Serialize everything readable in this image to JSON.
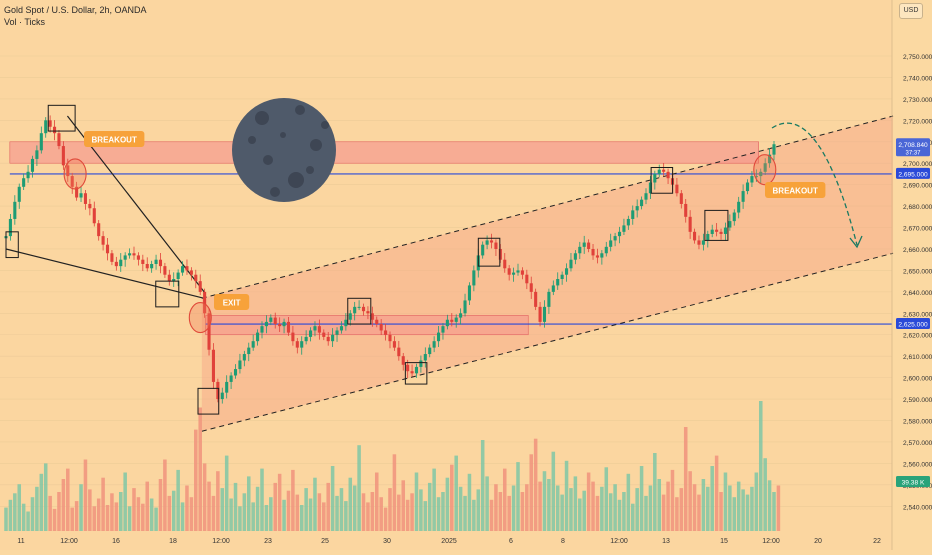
{
  "header": {
    "symbol_title": "Gold Spot / U.S. Dollar, 2h, OANDA",
    "volume_title": "Vol · Ticks",
    "currency": "USD"
  },
  "chart_data": {
    "type": "candlestick",
    "title": "Gold Spot / U.S. Dollar, 2h, OANDA",
    "price_axis": {
      "range": [
        2535,
        2757
      ],
      "ticks": [
        2540,
        2550,
        2560,
        2570,
        2580,
        2590,
        2600,
        2610,
        2620,
        2630,
        2640,
        2650,
        2660,
        2670,
        2680,
        2690,
        2700,
        2710,
        2720,
        2730,
        2740,
        2750
      ],
      "tick_labels": [
        "2,540.000",
        "2,550.000",
        "2,560.000",
        "2,570.000",
        "2,580.000",
        "2,590.000",
        "2,600.000",
        "2,610.000",
        "2,620.000",
        "2,630.000",
        "2,640.000",
        "2,650.000",
        "2,660.000",
        "2,670.000",
        "2,680.000",
        "2,690.000",
        "2,700.000",
        "2,710.000",
        "2,720.000",
        "2,730.000",
        "2,740.000",
        "2,750.000"
      ]
    },
    "time_axis": {
      "labels": [
        "11",
        "12:00",
        "16",
        "18",
        "12:00",
        "23",
        "25",
        "30",
        "2025",
        "6",
        "8",
        "12:00",
        "13",
        "15",
        "12:00",
        "20",
        "22"
      ]
    },
    "price_labels": [
      {
        "value": 2708.84,
        "label": "2,708.840",
        "sub": "37:37",
        "color": "#4a66d6"
      },
      {
        "value": 2695.0,
        "label": "2,695.000",
        "color": "#2a4ad8"
      },
      {
        "value": 2625.0,
        "label": "2,625.000",
        "color": "#2a4ad8"
      }
    ],
    "volume_label": "39.38 K",
    "horizontal_levels": [
      2695,
      2625
    ],
    "zones": [
      {
        "from": 2700,
        "to": 2710
      },
      {
        "from": 2620,
        "to": 2629
      }
    ],
    "channel": {
      "lower": [
        [
          2575,
          2570
        ],
        [
          2658,
          2658
        ]
      ],
      "upper": [
        [
          2637,
          2633
        ],
        [
          2724,
          2722
        ]
      ]
    },
    "annotations": [
      "BREAKOUT",
      "EXIT",
      "BREAKOUT"
    ],
    "close_series": [
      2666,
      2674,
      2682,
      2689,
      2693,
      2696,
      2702,
      2706,
      2714,
      2720,
      2717,
      2714,
      2708,
      2699,
      2694,
      2689,
      2684,
      2686,
      2681,
      2679,
      2672,
      2666,
      2662,
      2658,
      2654,
      2652,
      2655,
      2657,
      2658,
      2657,
      2655,
      2653,
      2651,
      2653,
      2655,
      2652,
      2648,
      2645,
      2646,
      2649,
      2652,
      2650,
      2648,
      2645,
      2640,
      2630,
      2613,
      2598,
      2590,
      2593,
      2598,
      2601,
      2604,
      2608,
      2611,
      2614,
      2617,
      2621,
      2624,
      2626,
      2628,
      2625,
      2624,
      2626,
      2621,
      2617,
      2614,
      2617,
      2619,
      2622,
      2624,
      2621,
      2619,
      2617,
      2620,
      2622,
      2624,
      2627,
      2630,
      2633,
      2633,
      2631,
      2630,
      2627,
      2625,
      2622,
      2620,
      2617,
      2614,
      2610,
      2606,
      2603,
      2602,
      2605,
      2608,
      2611,
      2614,
      2617,
      2621,
      2624,
      2627,
      2626,
      2628,
      2630,
      2636,
      2643,
      2650,
      2657,
      2662,
      2664,
      2663,
      2660,
      2655,
      2651,
      2648,
      2649,
      2650,
      2648,
      2644,
      2640,
      2633,
      2626,
      2633,
      2640,
      2643,
      2646,
      2648,
      2651,
      2655,
      2658,
      2661,
      2663,
      2660,
      2657,
      2656,
      2658,
      2661,
      2664,
      2666,
      2668,
      2671,
      2674,
      2678,
      2680,
      2683,
      2686,
      2691,
      2695,
      2697,
      2696,
      2693,
      2690,
      2686,
      2681,
      2675,
      2668,
      2664,
      2662,
      2664,
      2667,
      2669,
      2668,
      2667,
      2670,
      2673,
      2677,
      2682,
      2687,
      2691,
      2694,
      2694,
      2696,
      2700,
      2704,
      2708.84
    ],
    "volume_series": [
      18,
      24,
      29,
      36,
      21,
      15,
      26,
      34,
      44,
      52,
      27,
      17,
      30,
      40,
      48,
      18,
      23,
      36,
      55,
      32,
      19,
      25,
      41,
      20,
      29,
      22,
      30,
      45,
      19,
      33,
      26,
      21,
      38,
      25,
      18,
      40,
      55,
      27,
      31,
      47,
      22,
      35,
      26,
      78,
      95,
      52,
      38,
      27,
      46,
      33,
      58,
      25,
      37,
      19,
      29,
      42,
      22,
      34,
      48,
      20,
      26,
      37,
      44,
      24,
      31,
      47,
      28,
      20,
      33,
      25,
      41,
      29,
      22,
      37,
      50,
      27,
      33,
      23,
      41,
      35,
      66,
      29,
      22,
      30,
      45,
      26,
      18,
      33,
      59,
      28,
      39,
      24,
      29,
      45,
      32,
      23,
      37,
      48,
      26,
      30,
      41,
      51,
      58,
      34,
      27,
      44,
      24,
      32,
      70,
      42,
      24,
      36,
      30,
      48,
      27,
      35,
      53,
      30,
      36,
      59,
      71,
      38,
      46,
      40,
      61,
      35,
      28,
      54,
      33,
      42,
      25,
      31,
      45,
      38,
      27,
      34,
      49,
      29,
      36,
      24,
      30,
      44,
      21,
      33,
      50,
      27,
      35,
      60,
      40,
      28,
      38,
      47,
      26,
      33,
      80,
      46,
      36,
      28,
      40,
      34,
      50,
      58,
      30,
      45,
      35,
      26,
      38,
      32,
      28,
      34,
      45,
      100,
      56,
      39,
      30,
      35
    ]
  }
}
